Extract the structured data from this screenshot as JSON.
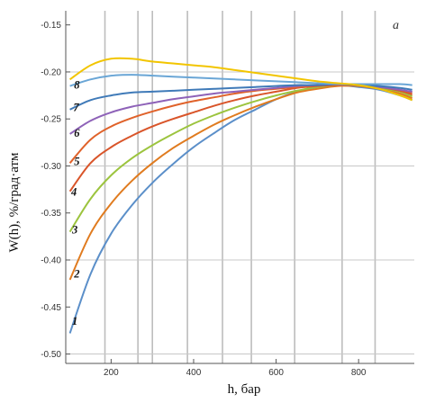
{
  "chart_data": {
    "type": "line",
    "panel_label": "a",
    "xlabel": "h, бар",
    "ylabel": "W(h), %/град·атм",
    "xlim": [
      90,
      935
    ],
    "ylim": [
      -0.51,
      -0.135
    ],
    "x_ticks": [
      {
        "value": 200,
        "label": "200"
      },
      {
        "value": 400,
        "label": "400"
      },
      {
        "value": 600,
        "label": "600"
      },
      {
        "value": 800,
        "label": "800"
      }
    ],
    "y_ticks": [
      {
        "value": -0.15,
        "label": "-0.15"
      },
      {
        "value": -0.2,
        "label": "-0.20"
      },
      {
        "value": -0.25,
        "label": "-0.25"
      },
      {
        "value": -0.3,
        "label": "-0.30"
      },
      {
        "value": -0.35,
        "label": "-0.35"
      },
      {
        "value": -0.4,
        "label": "-0.40"
      },
      {
        "value": -0.45,
        "label": "-0.45"
      },
      {
        "value": -0.5,
        "label": "-0.50"
      }
    ],
    "vertical_grid_x": [
      185,
      265,
      300,
      385,
      470,
      540,
      645,
      760,
      840
    ],
    "horizontal_grid_y": [
      -0.2,
      -0.3,
      -0.4,
      -0.5
    ],
    "x": [
      100,
      150,
      200,
      250,
      300,
      350,
      400,
      450,
      500,
      550,
      600,
      650,
      700,
      750,
      800,
      850,
      900,
      930
    ],
    "series": [
      {
        "name": "1",
        "color": "#5b8fc9",
        "values": [
          -0.478,
          -0.415,
          -0.372,
          -0.342,
          -0.318,
          -0.298,
          -0.28,
          -0.265,
          -0.251,
          -0.24,
          -0.229,
          -0.221,
          -0.216,
          -0.214,
          -0.216,
          -0.219,
          -0.225,
          -0.23
        ]
      },
      {
        "name": "2",
        "color": "#e07b1f",
        "values": [
          -0.421,
          -0.372,
          -0.34,
          -0.316,
          -0.297,
          -0.281,
          -0.268,
          -0.256,
          -0.246,
          -0.237,
          -0.229,
          -0.222,
          -0.218,
          -0.215,
          -0.215,
          -0.218,
          -0.223,
          -0.228
        ]
      },
      {
        "name": "3",
        "color": "#9cc43e",
        "values": [
          -0.37,
          -0.335,
          -0.31,
          -0.292,
          -0.278,
          -0.266,
          -0.255,
          -0.246,
          -0.238,
          -0.231,
          -0.225,
          -0.22,
          -0.216,
          -0.214,
          -0.214,
          -0.217,
          -0.221,
          -0.226
        ]
      },
      {
        "name": "4",
        "color": "#d9552a",
        "values": [
          -0.327,
          -0.297,
          -0.28,
          -0.268,
          -0.258,
          -0.25,
          -0.243,
          -0.236,
          -0.23,
          -0.225,
          -0.221,
          -0.217,
          -0.215,
          -0.214,
          -0.214,
          -0.216,
          -0.22,
          -0.224
        ]
      },
      {
        "name": "5",
        "color": "#e0622a",
        "values": [
          -0.297,
          -0.272,
          -0.258,
          -0.249,
          -0.242,
          -0.236,
          -0.231,
          -0.227,
          -0.223,
          -0.22,
          -0.218,
          -0.216,
          -0.214,
          -0.213,
          -0.214,
          -0.216,
          -0.219,
          -0.222
        ]
      },
      {
        "name": "6",
        "color": "#8e62b8",
        "values": [
          -0.266,
          -0.252,
          -0.243,
          -0.237,
          -0.233,
          -0.229,
          -0.226,
          -0.223,
          -0.221,
          -0.219,
          -0.217,
          -0.215,
          -0.214,
          -0.213,
          -0.214,
          -0.216,
          -0.219,
          -0.221
        ]
      },
      {
        "name": "7",
        "color": "#3f7ab8",
        "values": [
          -0.24,
          -0.23,
          -0.225,
          -0.222,
          -0.221,
          -0.22,
          -0.219,
          -0.218,
          -0.217,
          -0.216,
          -0.215,
          -0.214,
          -0.214,
          -0.213,
          -0.214,
          -0.215,
          -0.217,
          -0.219
        ]
      },
      {
        "name": "8",
        "color": "#6aa6d6",
        "values": [
          -0.215,
          -0.208,
          -0.204,
          -0.203,
          -0.204,
          -0.205,
          -0.206,
          -0.207,
          -0.208,
          -0.209,
          -0.21,
          -0.211,
          -0.212,
          -0.213,
          -0.213,
          -0.213,
          -0.213,
          -0.214
        ]
      },
      {
        "name": "",
        "color": "#f2c500",
        "values": [
          -0.208,
          -0.193,
          -0.186,
          -0.186,
          -0.189,
          -0.191,
          -0.193,
          -0.195,
          -0.198,
          -0.201,
          -0.204,
          -0.207,
          -0.21,
          -0.212,
          -0.214,
          -0.218,
          -0.225,
          -0.23
        ]
      }
    ],
    "curve_labels": [
      {
        "text": "1",
        "x": 112,
        "y": -0.465
      },
      {
        "text": "2",
        "x": 117,
        "y": -0.415
      },
      {
        "text": "3",
        "x": 112,
        "y": -0.368
      },
      {
        "text": "4",
        "x": 110,
        "y": -0.328
      },
      {
        "text": "5",
        "x": 117,
        "y": -0.295
      },
      {
        "text": "6",
        "x": 117,
        "y": -0.265
      },
      {
        "text": "7",
        "x": 115,
        "y": -0.238
      },
      {
        "text": "8",
        "x": 117,
        "y": -0.214
      }
    ],
    "grid": true,
    "legend": "none"
  }
}
